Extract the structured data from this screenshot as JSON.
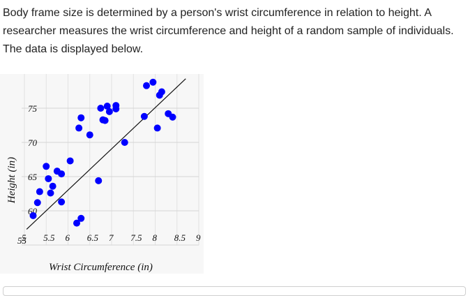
{
  "question": {
    "line1": "Body frame size is determined by a person's wrist circumference in relation to height. A",
    "line2": "researcher measures the wrist circumference and height of a random sample of individuals.",
    "line3": "The data is displayed below."
  },
  "chart_data": {
    "type": "scatter",
    "xlabel": "Wrist Circumference (in)",
    "ylabel": "Height (in)",
    "xlim": [
      5,
      9
    ],
    "ylim": [
      55,
      80
    ],
    "x_ticks": [
      "5",
      "5.5",
      "6",
      "6.5",
      "7",
      "7.5",
      "8",
      "8.5",
      "9"
    ],
    "y_ticks": [
      "55",
      "60",
      "65",
      "70",
      "75"
    ],
    "grid": true,
    "point_color": "#0000ff",
    "trend_line": {
      "x": [
        5.05,
        8.7
      ],
      "y": [
        57.3,
        79.3
      ]
    },
    "points": [
      {
        "x": 5.2,
        "y": 59.3
      },
      {
        "x": 5.3,
        "y": 61.2
      },
      {
        "x": 5.35,
        "y": 62.8
      },
      {
        "x": 5.5,
        "y": 66.5
      },
      {
        "x": 5.55,
        "y": 64.7
      },
      {
        "x": 5.6,
        "y": 62.6
      },
      {
        "x": 5.65,
        "y": 63.6
      },
      {
        "x": 5.75,
        "y": 65.8
      },
      {
        "x": 5.85,
        "y": 65.4
      },
      {
        "x": 5.85,
        "y": 61.3
      },
      {
        "x": 6.05,
        "y": 67.3
      },
      {
        "x": 6.2,
        "y": 58.2
      },
      {
        "x": 6.25,
        "y": 72.1
      },
      {
        "x": 6.3,
        "y": 73.6
      },
      {
        "x": 6.3,
        "y": 58.9
      },
      {
        "x": 6.5,
        "y": 71.1
      },
      {
        "x": 6.7,
        "y": 64.4
      },
      {
        "x": 6.75,
        "y": 75.0
      },
      {
        "x": 6.8,
        "y": 73.3
      },
      {
        "x": 6.85,
        "y": 73.2
      },
      {
        "x": 6.9,
        "y": 75.3
      },
      {
        "x": 6.95,
        "y": 74.5
      },
      {
        "x": 7.1,
        "y": 74.9
      },
      {
        "x": 7.1,
        "y": 75.4
      },
      {
        "x": 7.3,
        "y": 70.0
      },
      {
        "x": 7.75,
        "y": 73.8
      },
      {
        "x": 7.8,
        "y": 78.3
      },
      {
        "x": 7.95,
        "y": 78.8
      },
      {
        "x": 8.05,
        "y": 72.1
      },
      {
        "x": 8.1,
        "y": 76.9
      },
      {
        "x": 8.15,
        "y": 77.4
      },
      {
        "x": 8.3,
        "y": 74.2
      },
      {
        "x": 8.4,
        "y": 73.7
      }
    ]
  }
}
